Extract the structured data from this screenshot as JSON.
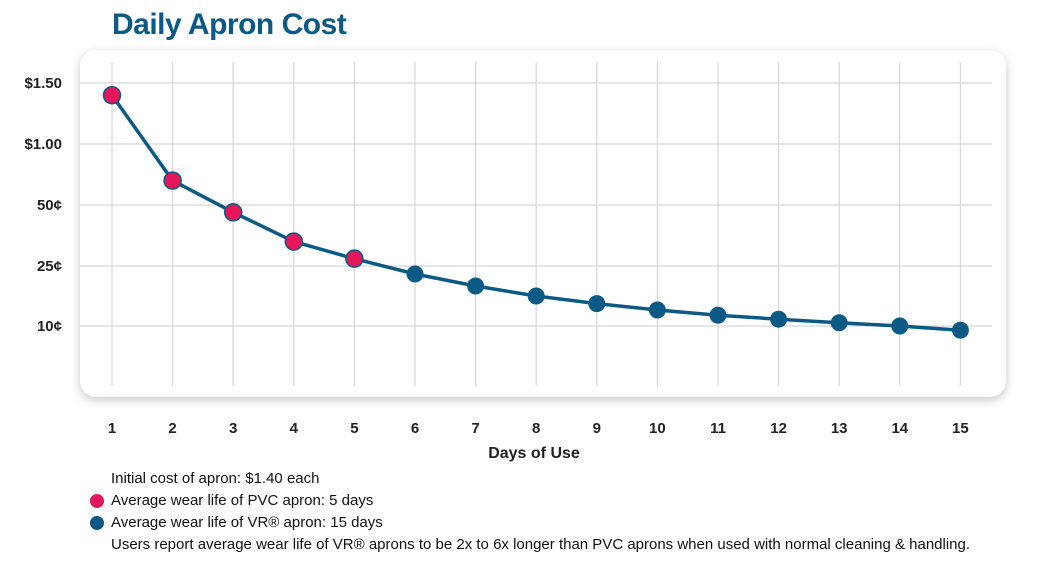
{
  "chart_data": {
    "type": "line",
    "title": "Daily Apron Cost",
    "xlabel": "Days of Use",
    "ylabel": "",
    "x": [
      1,
      2,
      3,
      4,
      5,
      6,
      7,
      8,
      9,
      10,
      11,
      12,
      13,
      14,
      15
    ],
    "y_ticks": [
      "$1.50",
      "$1.00",
      "50¢",
      "25¢",
      "10¢"
    ],
    "series": [
      {
        "values": [
          1.4,
          0.7,
          0.47,
          0.35,
          0.28,
          0.23,
          0.2,
          0.175,
          0.156,
          0.14,
          0.127,
          0.117,
          0.108,
          0.1,
          0.093
        ],
        "color": "#0b5a86"
      }
    ],
    "marker_colors": {
      "pvc": "#e5175a",
      "vr": "#0b5a86"
    },
    "pvc_days": 5,
    "grid": true
  },
  "notes": {
    "initial_cost": "Initial cost of apron: $1.40 each",
    "pvc": "Average wear life of PVC apron: 5 days",
    "vr": "Average wear life of VR® apron: 15 days",
    "report": "Users report average wear life of VR® aprons to be 2x to 6x longer than PVC aprons when used with normal cleaning & handling."
  }
}
